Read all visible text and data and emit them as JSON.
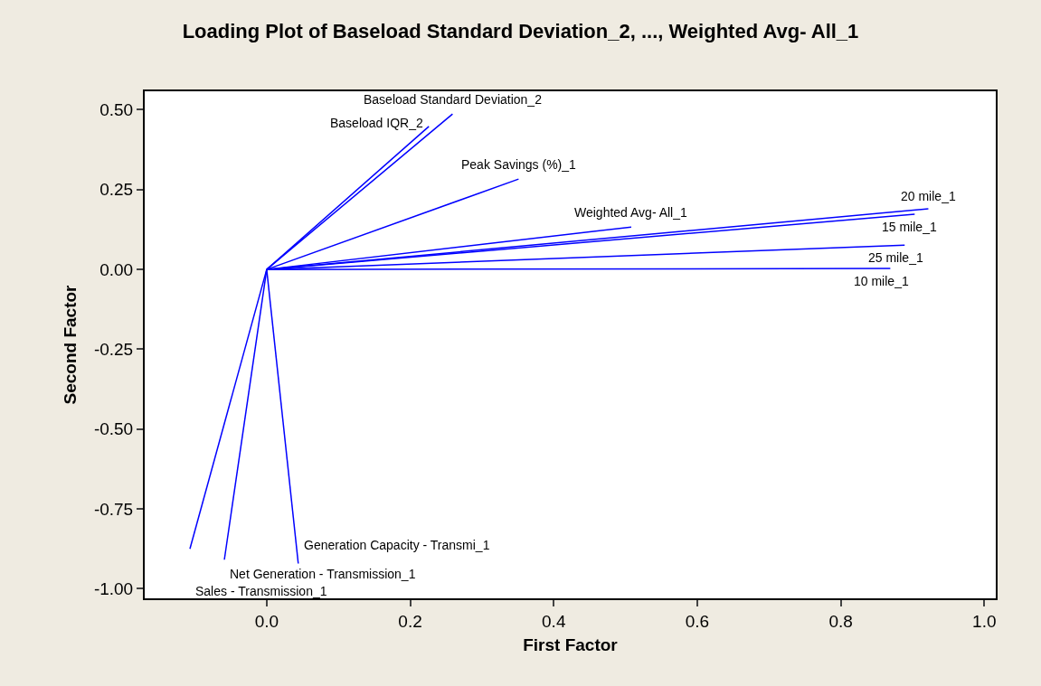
{
  "chart_data": {
    "type": "line",
    "title": "Loading Plot of Baseload Standard Deviation_2, ..., Weighted Avg- All_1",
    "xlabel": "First Factor",
    "ylabel": "Second Factor",
    "xlim": [
      -0.17,
      1.016
    ],
    "ylim": [
      -1.03,
      0.558
    ],
    "xticks": [
      {
        "value": 0,
        "label": "0.0"
      },
      {
        "value": 0.2,
        "label": "0.2"
      },
      {
        "value": 0.4,
        "label": "0.4"
      },
      {
        "value": 0.6,
        "label": "0.6"
      },
      {
        "value": 0.8,
        "label": "0.8"
      },
      {
        "value": 1,
        "label": "1.0"
      }
    ],
    "yticks": [
      {
        "value": 0.5,
        "label": "0.50"
      },
      {
        "value": 0.25,
        "label": "0.25"
      },
      {
        "value": 0,
        "label": "0.00"
      },
      {
        "value": -0.25,
        "label": "-0.25"
      },
      {
        "value": -0.5,
        "label": "-0.50"
      },
      {
        "value": -0.75,
        "label": "-0.75"
      },
      {
        "value": -1,
        "label": "-1.00"
      }
    ],
    "grid": false,
    "legend": false,
    "marker": "none",
    "line_style": "solid",
    "series": [
      {
        "name": "Baseload Standard Deviation_2",
        "color": "#0000ff",
        "x": [
          0,
          0.259
        ],
        "values": [
          0,
          0.487
        ]
      },
      {
        "name": "Baseload IQR_2",
        "color": "#0000ff",
        "x": [
          0,
          0.226
        ],
        "values": [
          0,
          0.448
        ]
      },
      {
        "name": "Peak Savings (%)_1",
        "color": "#0000ff",
        "x": [
          0,
          0.351
        ],
        "values": [
          0,
          0.283
        ]
      },
      {
        "name": "Weighted Avg- All_1",
        "color": "#0000ff",
        "x": [
          0,
          0.508
        ],
        "values": [
          0,
          0.133
        ]
      },
      {
        "name": "20 mile_1",
        "color": "#0000ff",
        "x": [
          0,
          0.922
        ],
        "values": [
          0,
          0.19
        ]
      },
      {
        "name": "15 mile_1",
        "color": "#0000ff",
        "x": [
          0,
          0.903
        ],
        "values": [
          0,
          0.173
        ]
      },
      {
        "name": "25 mile_1",
        "color": "#0000ff",
        "x": [
          0,
          0.889
        ],
        "values": [
          0,
          0.076
        ]
      },
      {
        "name": "10 mile_1",
        "color": "#0000ff",
        "x": [
          0,
          0.869
        ],
        "values": [
          0,
          0.003
        ]
      },
      {
        "name": "Sales - Transmission_1",
        "color": "#0000ff",
        "x": [
          0,
          -0.107
        ],
        "values": [
          0,
          -0.875
        ]
      },
      {
        "name": "Net Generation - Transmission_1",
        "color": "#0000ff",
        "x": [
          0,
          -0.059
        ],
        "values": [
          0,
          -0.909
        ]
      },
      {
        "name": "Generation Capacity - Transmi_1",
        "color": "#0000ff",
        "x": [
          0,
          0.044
        ],
        "values": [
          0,
          -0.921
        ]
      }
    ]
  }
}
